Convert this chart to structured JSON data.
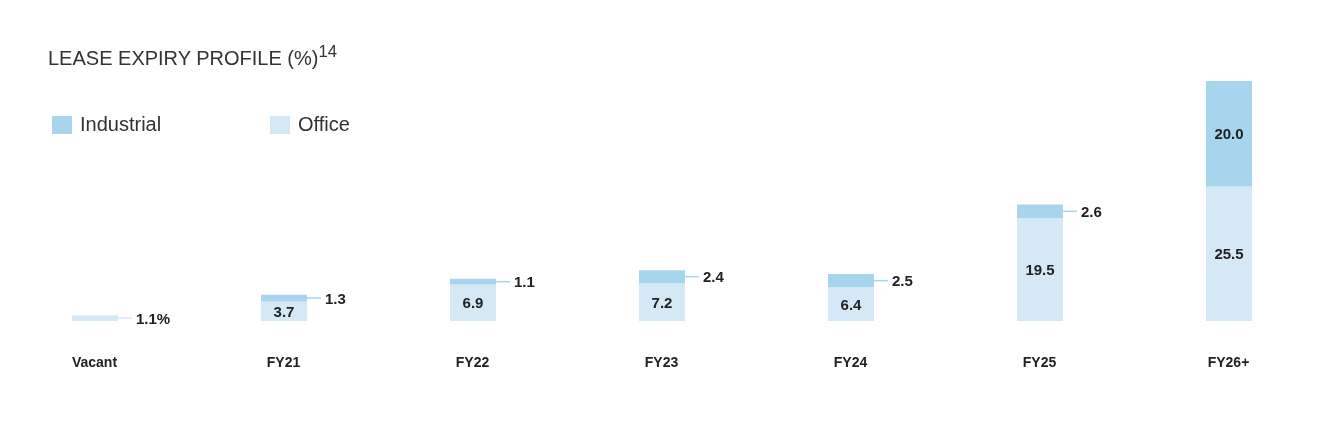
{
  "chart_data": {
    "type": "bar",
    "title": "LEASE EXPIRY PROFILE (%)$^{14}$",
    "categories": [
      "Vacant",
      "FY21",
      "FY22",
      "FY23",
      "FY24",
      "FY25",
      "FY26+"
    ],
    "stacked": true,
    "legend": "top left",
    "series": [
      {
        "name": "Office",
        "color": "#d5e8f6",
        "values": [
          1.1,
          3.7,
          6.9,
          7.2,
          6.4,
          19.5,
          25.5
        ],
        "value_labels": [
          "1.1%",
          "3.7",
          "6.9",
          "7.2",
          "6.4",
          "19.5",
          "25.5"
        ]
      },
      {
        "name": "Industrial",
        "color": "#a8d5ee",
        "values": [
          null,
          1.3,
          1.1,
          2.4,
          2.5,
          2.6,
          20.0
        ],
        "value_labels": [
          null,
          "1.3",
          "1.1",
          "2.4",
          "2.5",
          "2.6",
          "20.0"
        ]
      }
    ]
  }
}
